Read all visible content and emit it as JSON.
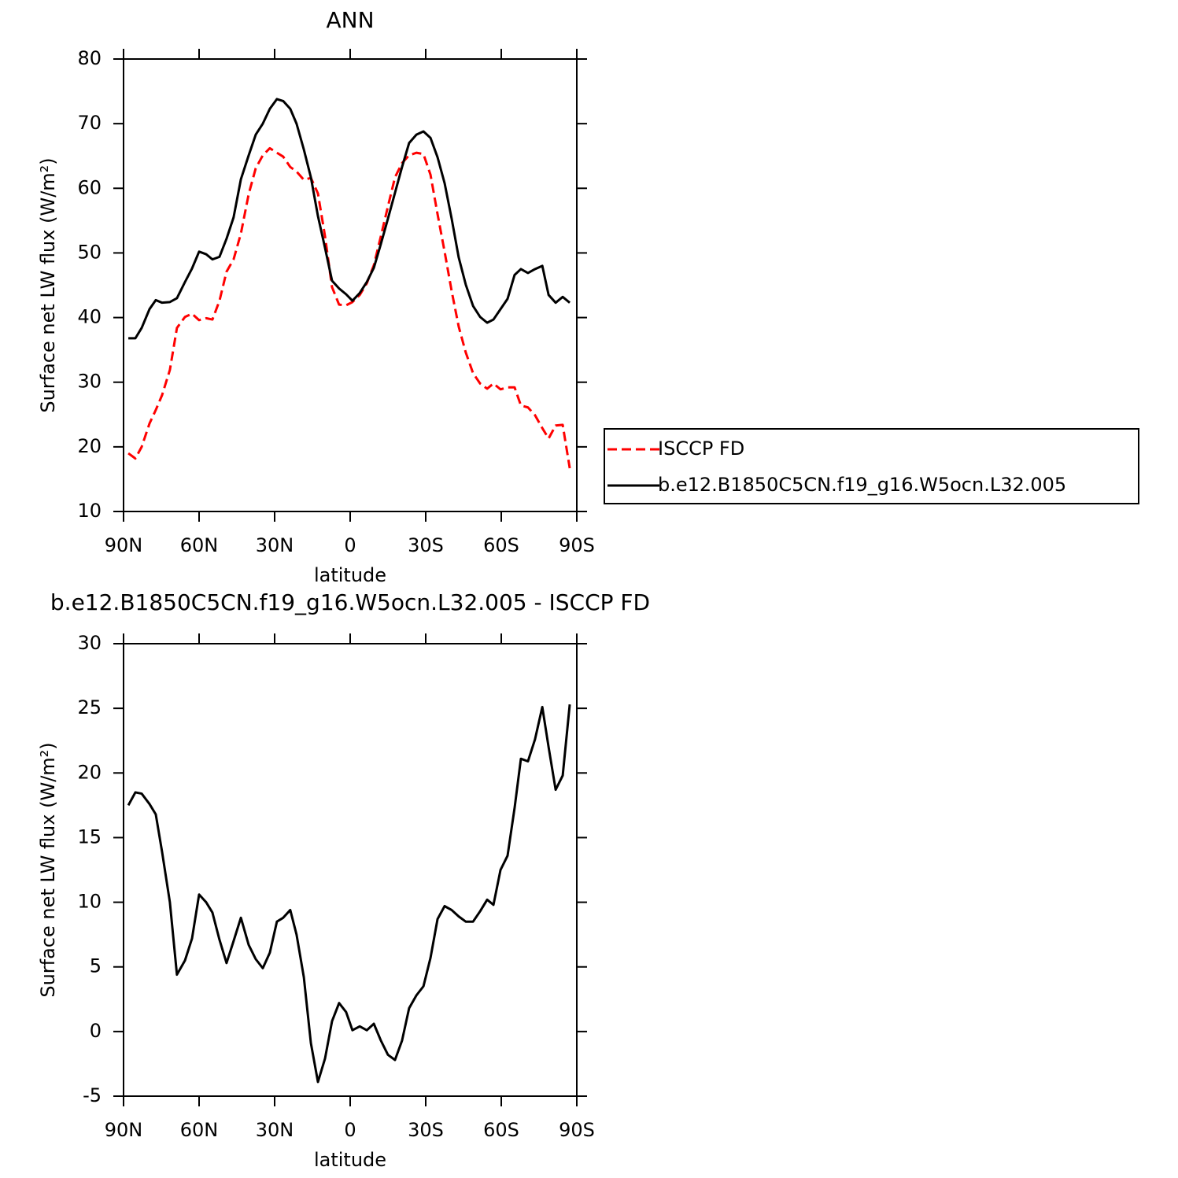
{
  "chart_data": [
    {
      "type": "line",
      "title": "ANN",
      "x_label": "latitude",
      "y_label": "Surface net LW flux (W/m²)",
      "x": [
        88.1,
        85.3,
        82.8,
        79.7,
        77.2,
        74.7,
        71.6,
        68.8,
        65.6,
        62.8,
        60.0,
        57.2,
        54.7,
        51.9,
        49.1,
        46.3,
        43.4,
        40.3,
        37.5,
        34.7,
        31.9,
        29.1,
        26.6,
        23.8,
        21.3,
        18.4,
        15.6,
        12.8,
        10.0,
        7.2,
        4.4,
        1.6,
        -0.9,
        -3.8,
        -6.6,
        -9.4,
        -12.2,
        -15.0,
        -17.8,
        -20.6,
        -23.4,
        -26.3,
        -29.1,
        -31.9,
        -34.7,
        -37.5,
        -40.3,
        -43.1,
        -45.9,
        -48.8,
        -51.6,
        -54.4,
        -56.9,
        -59.7,
        -62.5,
        -65.3,
        -67.8,
        -70.6,
        -73.4,
        -76.3,
        -78.8,
        -81.6,
        -84.4,
        -87.2
      ],
      "xlim": [
        90,
        -90
      ],
      "xticks": [
        {
          "value": 90,
          "label": "90N"
        },
        {
          "value": 60,
          "label": "60N"
        },
        {
          "value": 30,
          "label": "30N"
        },
        0,
        {
          "value": -30,
          "label": "30S"
        },
        {
          "value": -60,
          "label": "60S"
        },
        {
          "value": -90,
          "label": "90S"
        }
      ],
      "ylim": [
        10,
        80
      ],
      "yticks": [
        10,
        20,
        30,
        40,
        50,
        60,
        70,
        80
      ],
      "legend": "outside-right",
      "series": [
        {
          "name": "ISCCP FD",
          "color": "#ff0000",
          "dash": "dashed",
          "values": [
            19.0,
            18.2,
            20.0,
            23.6,
            25.7,
            28.0,
            31.9,
            38.4,
            40.1,
            40.6,
            39.6,
            39.9,
            39.7,
            42.6,
            47.1,
            49.0,
            53.0,
            59.1,
            63.1,
            65.1,
            66.2,
            65.5,
            64.9,
            63.3,
            62.6,
            61.3,
            61.6,
            59.2,
            52.6,
            44.7,
            42.0,
            41.9,
            42.4,
            43.5,
            45.3,
            48.1,
            52.6,
            57.2,
            61.7,
            63.9,
            65.1,
            65.5,
            65.3,
            62.1,
            56.0,
            50.2,
            44.1,
            38.6,
            34.6,
            31.4,
            29.8,
            29.0,
            29.8,
            28.9,
            29.2,
            29.2,
            26.4,
            26.1,
            24.9,
            22.9,
            21.3,
            23.3,
            23.4,
            16.7
          ]
        },
        {
          "name": "b.e12.B1850C5CN.f19_g16.W5ocn.L32.005",
          "color": "#000000",
          "dash": "solid",
          "values": [
            36.8,
            36.8,
            38.4,
            41.3,
            42.7,
            42.3,
            42.4,
            43.0,
            45.5,
            47.6,
            50.2,
            49.8,
            49.0,
            49.4,
            52.2,
            55.5,
            61.4,
            65.1,
            68.3,
            70.0,
            72.3,
            73.8,
            73.5,
            72.3,
            70.0,
            66.0,
            61.7,
            55.7,
            50.8,
            45.7,
            44.5,
            43.6,
            42.6,
            43.8,
            45.5,
            47.7,
            51.4,
            55.3,
            59.3,
            63.3,
            67.0,
            68.3,
            68.8,
            67.8,
            64.8,
            60.8,
            55.3,
            49.3,
            45.1,
            41.8,
            40.1,
            39.2,
            39.7,
            41.3,
            42.9,
            46.6,
            47.5,
            46.9,
            47.5,
            48.0,
            43.5,
            42.3,
            43.2,
            42.3
          ]
        }
      ]
    },
    {
      "type": "line",
      "title": "b.e12.B1850C5CN.f19_g16.W5ocn.L32.005 - ISCCP FD",
      "x_label": "latitude",
      "y_label": "Surface net LW flux (W/m²)",
      "x": [
        88.1,
        85.3,
        82.8,
        79.7,
        77.2,
        74.7,
        71.6,
        68.8,
        65.6,
        62.8,
        60.0,
        57.2,
        54.7,
        51.9,
        49.1,
        46.3,
        43.4,
        40.3,
        37.5,
        34.7,
        31.9,
        29.1,
        26.6,
        23.8,
        21.3,
        18.4,
        15.6,
        12.8,
        10.0,
        7.2,
        4.4,
        1.6,
        -0.9,
        -3.8,
        -6.6,
        -9.4,
        -12.2,
        -15.0,
        -17.8,
        -20.6,
        -23.4,
        -26.3,
        -29.1,
        -31.9,
        -34.7,
        -37.5,
        -40.3,
        -43.1,
        -45.9,
        -48.8,
        -51.6,
        -54.4,
        -56.9,
        -59.7,
        -62.5,
        -65.3,
        -67.8,
        -70.6,
        -73.4,
        -76.3,
        -78.8,
        -81.6,
        -84.4,
        -87.2
      ],
      "xlim": [
        90,
        -90
      ],
      "xticks": [
        {
          "value": 90,
          "label": "90N"
        },
        {
          "value": 60,
          "label": "60N"
        },
        {
          "value": 30,
          "label": "30N"
        },
        0,
        {
          "value": -30,
          "label": "30S"
        },
        {
          "value": -60,
          "label": "60S"
        },
        {
          "value": -90,
          "label": "90S"
        }
      ],
      "ylim": [
        -5,
        30
      ],
      "yticks": [
        -5,
        0,
        5,
        10,
        15,
        20,
        25,
        30
      ],
      "series": [
        {
          "color": "#000000",
          "dash": "solid",
          "values": [
            17.5,
            18.5,
            18.4,
            17.6,
            16.8,
            13.9,
            10.0,
            4.4,
            5.5,
            7.2,
            10.6,
            10.0,
            9.2,
            7.1,
            5.3,
            7.0,
            8.8,
            6.7,
            5.6,
            4.9,
            6.1,
            8.5,
            8.8,
            9.4,
            7.5,
            4.2,
            -0.9,
            -3.9,
            -2.1,
            0.8,
            2.2,
            1.5,
            0.1,
            0.4,
            0.1,
            0.6,
            -0.7,
            -1.8,
            -2.2,
            -0.7,
            1.8,
            2.8,
            3.5,
            5.7,
            8.7,
            9.7,
            9.4,
            8.9,
            8.5,
            8.5,
            9.3,
            10.2,
            9.8,
            12.5,
            13.6,
            17.3,
            21.1,
            20.9,
            22.6,
            25.1,
            22.0,
            18.7,
            19.8,
            25.3
          ]
        }
      ]
    }
  ]
}
